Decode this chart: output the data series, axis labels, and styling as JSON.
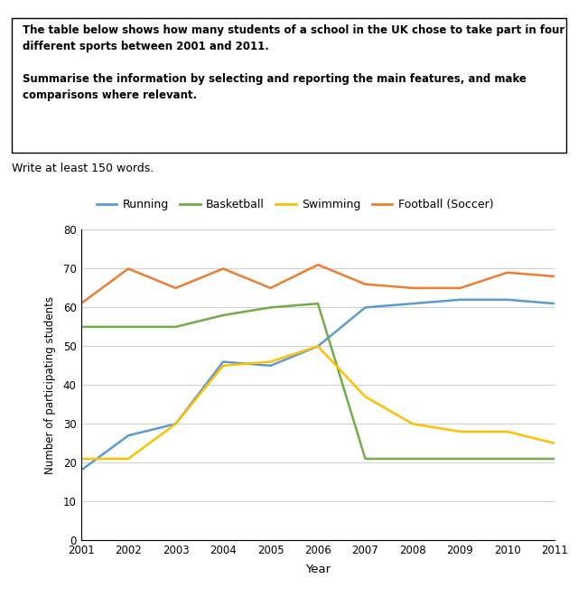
{
  "title_box_lines": [
    "The table below shows how many students of a school in the UK chose to take part in four",
    "different sports between 2001 and 2011.",
    "",
    "Summarise the information by selecting and reporting the main features, and make",
    "comparisons where relevant."
  ],
  "subtitle": "Write at least 150 words.",
  "years": [
    2001,
    2002,
    2003,
    2004,
    2005,
    2006,
    2007,
    2008,
    2009,
    2010,
    2011
  ],
  "running": [
    18,
    27,
    30,
    46,
    45,
    50,
    60,
    61,
    62,
    62,
    61
  ],
  "basketball": [
    55,
    55,
    55,
    58,
    60,
    61,
    21,
    21,
    21,
    21,
    21
  ],
  "swimming": [
    21,
    21,
    30,
    45,
    46,
    50,
    37,
    30,
    28,
    28,
    25
  ],
  "football": [
    61,
    70,
    65,
    70,
    65,
    71,
    66,
    65,
    65,
    69,
    68
  ],
  "running_color": "#5b9bd5",
  "basketball_color": "#70ad47",
  "swimming_color": "#ffc000",
  "football_color": "#ed7d31",
  "xlabel": "Year",
  "ylabel": "Number of participating students",
  "ylim": [
    0,
    80
  ],
  "yticks": [
    0,
    10,
    20,
    30,
    40,
    50,
    60,
    70,
    80
  ],
  "legend_labels": [
    "Running",
    "Basketball",
    "Swimming",
    "Football (Soccer)"
  ],
  "background_color": "#ffffff",
  "grid_color": "#d0d0d0",
  "box_line_color": "#000000",
  "spine_color": "#000000"
}
